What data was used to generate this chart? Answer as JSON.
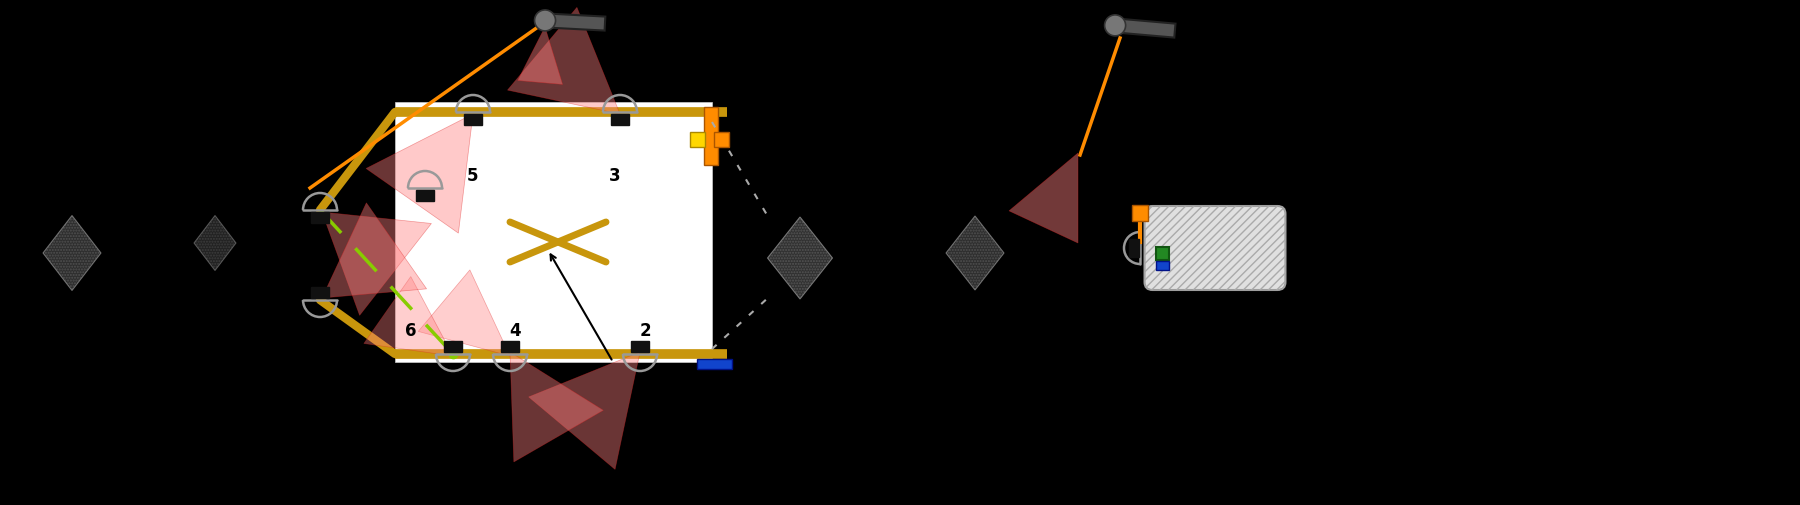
{
  "bg_color": "#000000",
  "fig_width": 18.0,
  "fig_height": 5.05,
  "dpi": 100,
  "gold_color": "#C8960C",
  "orange_color": "#FF8C00",
  "red_light_color": "#FF8080",
  "red_edge_color": "#DD2222",
  "green_dashed": "#88CC00",
  "gray_camera": "#888888",
  "dark_gray_cam": "#555555",
  "blue_color": "#1144CC",
  "orange_sq": "#FF8C00",
  "yellow_sq": "#FFD700",
  "green_sq": "#228822",
  "light_alpha": 0.42,
  "cam_color": "#999999",
  "cam_lw": 1.8,
  "cam_r": 17
}
